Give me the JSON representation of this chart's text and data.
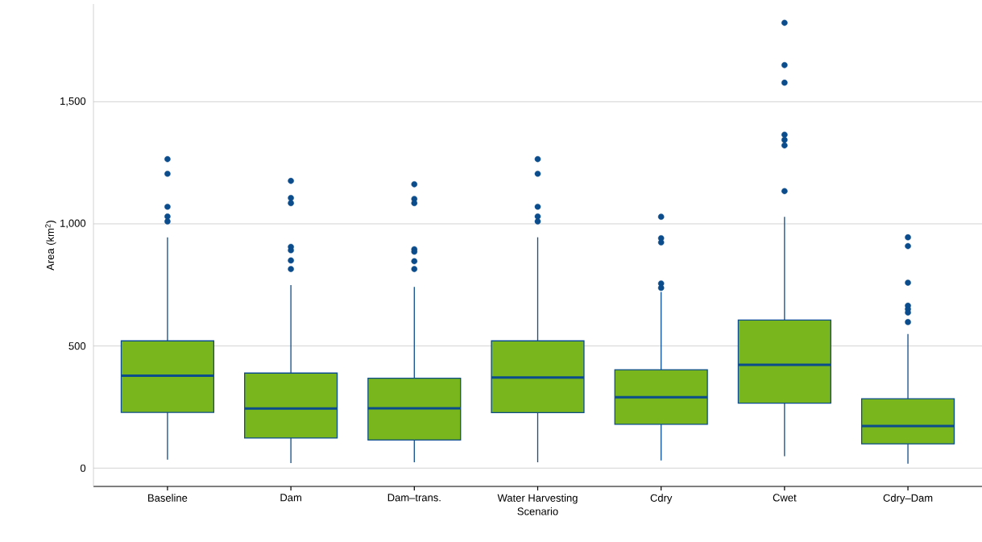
{
  "chart_data": {
    "type": "box",
    "xlabel": "Scenario",
    "ylabel": "Area (km$^{2}$)",
    "categories": [
      "Baseline",
      "Dam",
      "Dam–trans.",
      "Water Harvesting",
      "Cdry",
      "Cwet",
      "Cdry–Dam"
    ],
    "ylim": [
      -75,
      1900
    ],
    "yticks": [
      0,
      500,
      {
        "value": 1000,
        "label": "1,000"
      },
      {
        "value": 1500,
        "label": "1,500"
      }
    ],
    "grid": "y",
    "series": [
      {
        "color": "#79b51c",
        "boxes": [
          {
            "low": 35,
            "q1": 228,
            "median": 378,
            "q3": 521,
            "high": 945,
            "outliers": [
              1265,
              1205,
              1070,
              1030,
              1010
            ]
          },
          {
            "low": 21,
            "q1": 123,
            "median": 244,
            "q3": 389,
            "high": 749,
            "outliers": [
              1176,
              1106,
              1085,
              906,
              892,
              850,
              815
            ]
          },
          {
            "low": 24,
            "q1": 115,
            "median": 245,
            "q3": 368,
            "high": 742,
            "outliers": [
              1162,
              1102,
              1085,
              896,
              886,
              847,
              815
            ]
          },
          {
            "low": 24,
            "q1": 227,
            "median": 371,
            "q3": 521,
            "high": 945,
            "outliers": [
              1265,
              1205,
              1070,
              1030,
              1010
            ]
          },
          {
            "low": 31,
            "q1": 179,
            "median": 290,
            "q3": 403,
            "high": 721,
            "outliers": [
              1029,
              941,
              924,
              756,
              738
            ]
          },
          {
            "low": 49,
            "q1": 266,
            "median": 423,
            "q3": 606,
            "high": 1029,
            "outliers": [
              1823,
              1650,
              1578,
              1365,
              1344,
              1321,
              1134
            ]
          },
          {
            "low": 18,
            "q1": 99,
            "median": 172,
            "q3": 284,
            "high": 549,
            "outliers": [
              945,
              909,
              759,
              665,
              651,
              637,
              598
            ]
          }
        ]
      }
    ]
  }
}
